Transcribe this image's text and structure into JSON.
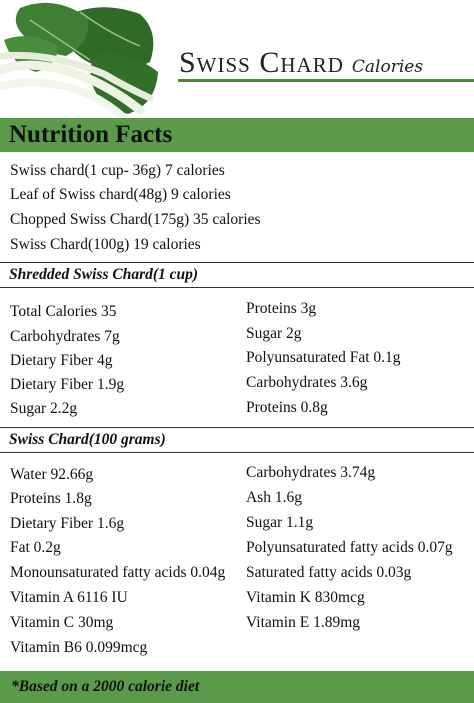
{
  "title": {
    "main": "Swiss Chard",
    "sub": "Calories"
  },
  "nutrition_heading": "Nutrition Facts",
  "servings": [
    "Swiss chard(1 cup- 36g) 7 calories",
    "Leaf of Swiss chard(48g) 9 calories",
    "Chopped Swiss Chard(175g) 35 calories",
    "Swiss Chard(100g) 19 calories"
  ],
  "shredded": {
    "heading": "Shredded Swiss Chard(1 cup)",
    "left": [
      "Total Calories 35",
      "Carbohydrates 7g",
      "Dietary Fiber 4g",
      "Dietary Fiber 1.9g",
      "Sugar 2.2g"
    ],
    "right": [
      "Proteins 3g",
      "Sugar 2g",
      "Polyunsaturated Fat 0.1g",
      "Carbohydrates 3.6g",
      "Proteins 0.8g"
    ]
  },
  "per100": {
    "heading": "Swiss Chard(100 grams)",
    "left": [
      "Water 92.66g",
      "Proteins 1.8g",
      "Dietary Fiber 1.6g",
      "Fat 0.2g",
      "Monounsaturated fatty acids 0.04g",
      "Vitamin A 6116 IU",
      "Vitamin C 30mg",
      "Vitamin B6 0.099mcg"
    ],
    "right": [
      "Carbohydrates 3.74g",
      "Ash 1.6g",
      "Sugar 1.1g",
      "Polyunsaturated fatty acids 0.07g",
      "Saturated fatty acids 0.03g",
      "Vitamin K 830mcg",
      "Vitamin E 1.89mg"
    ]
  },
  "footer": "*Based on a 2000 calorie diet",
  "colors": {
    "band_green": "#5a9a4a",
    "rule_green": "#4a8a3a",
    "leaf_dark": "#2f6b27",
    "stalk": "#eef3e4"
  },
  "images": {
    "veg": "swiss-chard-illustration"
  }
}
